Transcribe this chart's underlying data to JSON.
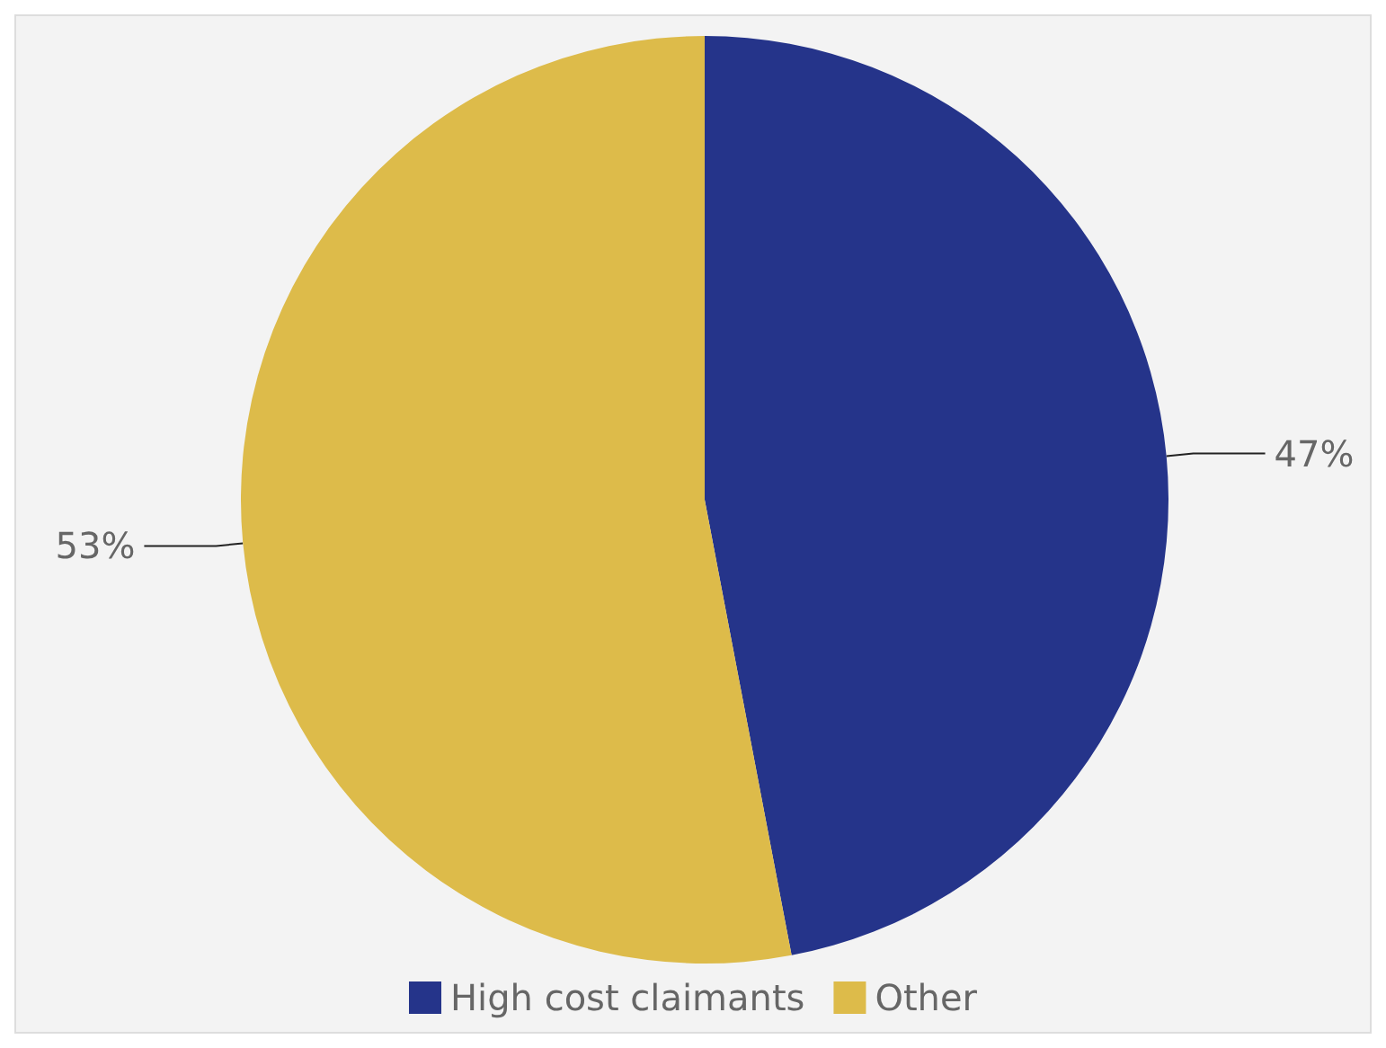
{
  "chart_data": {
    "type": "pie",
    "categories": [
      "High cost claimants",
      "Other"
    ],
    "values": [
      47,
      53
    ],
    "colors": [
      "#25348a",
      "#ddbb4a"
    ],
    "value_labels": [
      "47%",
      "53%"
    ],
    "legend": "bottom"
  }
}
